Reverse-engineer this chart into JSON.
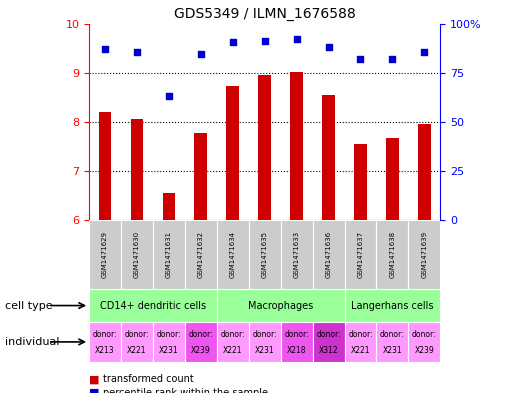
{
  "title": "GDS5349 / ILMN_1676588",
  "samples": [
    "GSM1471629",
    "GSM1471630",
    "GSM1471631",
    "GSM1471632",
    "GSM1471634",
    "GSM1471635",
    "GSM1471633",
    "GSM1471636",
    "GSM1471637",
    "GSM1471638",
    "GSM1471639"
  ],
  "bar_values": [
    8.2,
    8.05,
    6.55,
    7.78,
    8.72,
    8.95,
    9.02,
    8.55,
    7.55,
    7.68,
    7.95
  ],
  "dot_values": [
    9.48,
    9.42,
    8.52,
    9.38,
    9.62,
    9.65,
    9.68,
    9.52,
    9.28,
    9.28,
    9.42
  ],
  "ylim": [
    6,
    10
  ],
  "yticks_left": [
    6,
    7,
    8,
    9,
    10
  ],
  "yticks_right": [
    6,
    7,
    8,
    9,
    10
  ],
  "right_labels": [
    "0",
    "25",
    "50",
    "75",
    "100%"
  ],
  "bar_color": "#cc0000",
  "dot_color": "#0000cc",
  "bar_bottom": 6,
  "ct_groups": [
    {
      "label": "CD14+ dendritic cells",
      "start": 0,
      "end": 3,
      "color": "#99ff99"
    },
    {
      "label": "Macrophages",
      "start": 4,
      "end": 7,
      "color": "#99ff99"
    },
    {
      "label": "Langerhans cells",
      "start": 8,
      "end": 10,
      "color": "#99ff99"
    }
  ],
  "ind_colors": [
    "#ff99ff",
    "#ff99ff",
    "#ff99ff",
    "#ee55ee",
    "#ff99ff",
    "#ff99ff",
    "#ee55ee",
    "#cc33cc",
    "#ff99ff",
    "#ff99ff",
    "#ff99ff"
  ],
  "ind_donors": [
    "X213",
    "X221",
    "X231",
    "X239",
    "X221",
    "X231",
    "X218",
    "X312",
    "X221",
    "X231",
    "X239"
  ],
  "legend_red": "transformed count",
  "legend_blue": "percentile rank within the sample",
  "cell_type_label": "cell type",
  "individual_label": "individual",
  "bg_color": "#ffffff",
  "sample_box_color": "#cccccc",
  "bar_width": 0.4
}
